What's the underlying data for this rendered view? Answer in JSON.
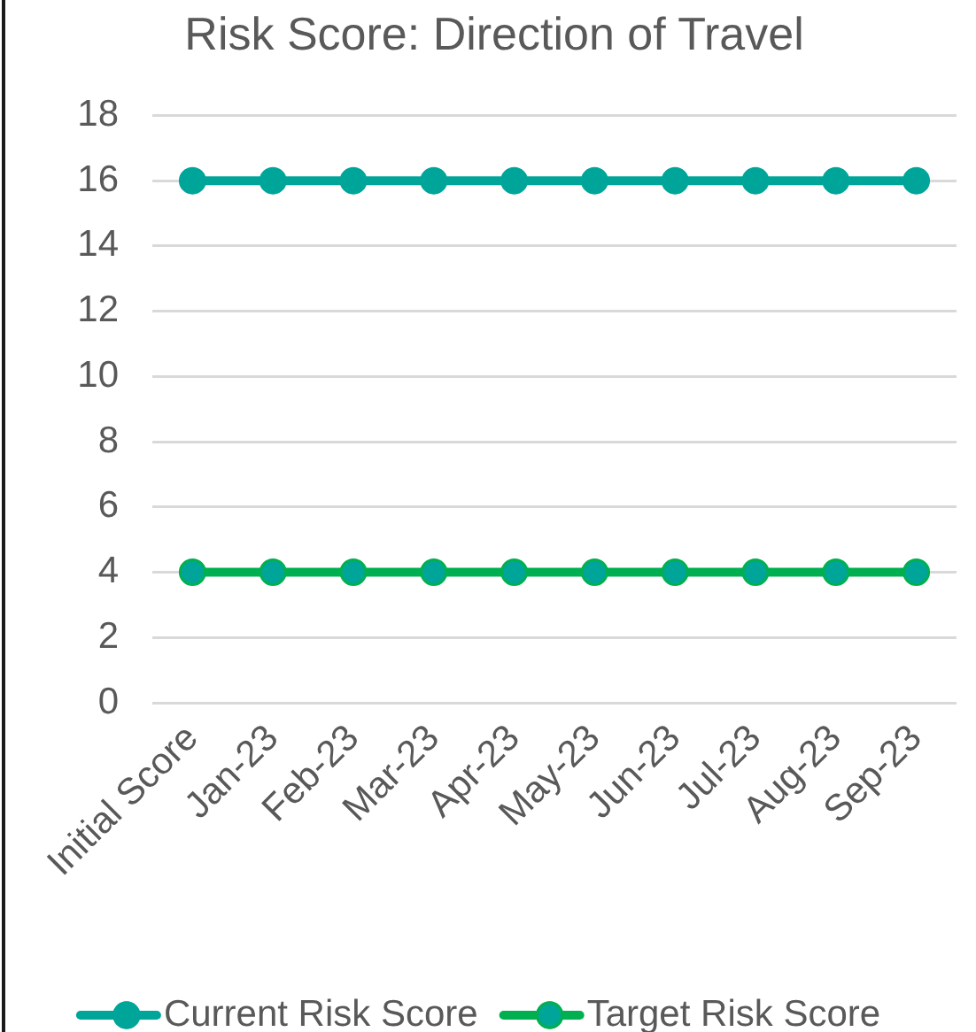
{
  "chart_data": {
    "type": "line",
    "title": "Risk Score: Direction of Travel",
    "categories": [
      "Initial Score",
      "Jan-23",
      "Feb-23",
      "Mar-23",
      "Apr-23",
      "May-23",
      "Jun-23",
      "Jul-23",
      "Aug-23",
      "Sep-23"
    ],
    "series": [
      {
        "name": "Current Risk Score",
        "color": "#00a59a",
        "values": [
          16,
          16,
          16,
          16,
          16,
          16,
          16,
          16,
          16,
          16
        ]
      },
      {
        "name": "Target Risk Score",
        "color": "#00b050",
        "colors": [
          "#00a59a",
          "#00a59a",
          "#00a59a",
          "#00a59a",
          "#00a59a",
          "#00a59a",
          "#00a59a",
          "#00a59a",
          "#00a59a",
          "#00a59a"
        ],
        "values": [
          4,
          4,
          4,
          4,
          4,
          4,
          4,
          4,
          4,
          4
        ]
      }
    ],
    "ylim": [
      0,
      18
    ],
    "yticks": [
      0,
      2,
      4,
      6,
      8,
      10,
      12,
      14,
      16,
      18
    ],
    "grid": "y",
    "legend": "bottom",
    "marker": "circle",
    "line_style": "solid"
  }
}
